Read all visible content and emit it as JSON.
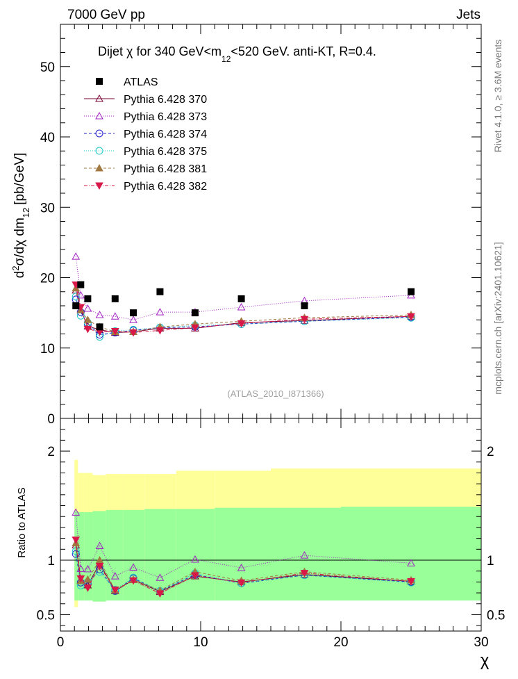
{
  "header": {
    "left": "7000 GeV pp",
    "right": "Jets"
  },
  "side_labels": {
    "rivet": "Rivet 4.1.0, ≥ 3.6M events",
    "mcplots": "mcplots.cern.ch [arXiv:2401.10621]"
  },
  "chart_data": {
    "type": "scatter",
    "title": "Dijet χ for 340 GeV<m 12<520 GeV.  anti-KT, R=0.4.",
    "title_parts": {
      "pre": "Dijet χ for 340 GeV<m",
      "sub": "12",
      "post": "<520 GeV.  anti-KT, R=0.4."
    },
    "ylabel_main": "d²σ/dχ dm12 [pb/GeV]",
    "ylabel_parts": {
      "d": "d",
      "sup": "2",
      "mid": "σ/dχ dm",
      "sub": "12",
      "unit": "[pb/GeV]"
    },
    "ylabel_ratio": "Ratio to ATLAS",
    "xlabel": "χ",
    "watermark": "(ATLAS_2010_I871366)",
    "xlim": [
      0,
      30
    ],
    "ylim_main": [
      0,
      56
    ],
    "ylim_ratio": [
      0.35,
      2.3
    ],
    "x_ticks": [
      0,
      10,
      20,
      30
    ],
    "y_ticks_main": [
      0,
      10,
      20,
      30,
      40,
      50
    ],
    "y_ticks_ratio": [
      0.5,
      1,
      2
    ],
    "x": [
      1.1,
      1.45,
      1.95,
      2.8,
      3.9,
      5.2,
      7.1,
      9.6,
      12.9,
      17.4,
      25.0
    ],
    "bin_edges": [
      1.0,
      1.25,
      1.7,
      2.3,
      3.25,
      4.5,
      6.0,
      8.25,
      11.0,
      15.0,
      20.0,
      30.0
    ],
    "data": {
      "name": "ATLAS",
      "values": [
        16,
        19,
        17,
        13,
        17,
        15,
        18,
        15,
        17,
        16,
        18
      ]
    },
    "band_inner_up": [
      1.45,
      1.44,
      1.44,
      1.45,
      1.46,
      1.46,
      1.47,
      1.47,
      1.48,
      1.48,
      1.49
    ],
    "band_inner_down": [
      0.63,
      0.63,
      0.63,
      0.62,
      0.63,
      0.63,
      0.63,
      0.63,
      0.63,
      0.63,
      0.63
    ],
    "band_outer_up": [
      1.92,
      1.8,
      1.8,
      1.78,
      1.79,
      1.79,
      1.79,
      1.82,
      1.82,
      1.84,
      1.84
    ],
    "band_outer_down": [
      0.57,
      0.65,
      0.64,
      0.63,
      0.67,
      0.68,
      0.69,
      0.67,
      0.65,
      0.64,
      0.64
    ],
    "series": [
      {
        "name": "Pythia 6.428 370",
        "color": "#7a0033",
        "marker": "triangle-open",
        "dash": "",
        "values": [
          18.2,
          15.4,
          13.1,
          12.6,
          12.2,
          12.3,
          12.8,
          12.8,
          13.6,
          13.9,
          14.5
        ]
      },
      {
        "name": "Pythia 6.428 373",
        "color": "#a020c0",
        "marker": "triangle-open",
        "dash": "1,2",
        "values": [
          23.0,
          17.5,
          15.6,
          14.7,
          14.5,
          14.0,
          15.1,
          15.1,
          15.8,
          16.7,
          17.5
        ]
      },
      {
        "name": "Pythia 6.428 374",
        "color": "#2020c8",
        "marker": "circle-open",
        "dash": "4,3",
        "values": [
          16.9,
          15.1,
          13.4,
          11.9,
          12.2,
          12.5,
          12.9,
          13.0,
          13.4,
          13.8,
          14.4
        ]
      },
      {
        "name": "Pythia 6.428 375",
        "color": "#20c8c8",
        "marker": "circle-open",
        "dash": "1,2",
        "values": [
          17.3,
          14.6,
          13.6,
          11.6,
          12.4,
          12.6,
          12.9,
          13.2,
          13.4,
          13.8,
          14.3
        ]
      },
      {
        "name": "Pythia 6.428 381",
        "color": "#a07840",
        "marker": "triangle-fill",
        "dash": "4,3",
        "values": [
          18.5,
          15.4,
          14.0,
          13.0,
          12.3,
          12.3,
          13.0,
          13.4,
          13.8,
          14.3,
          14.7
        ]
      },
      {
        "name": "Pythia 6.428 382",
        "color": "#d81848",
        "marker": "triangle-down-fill",
        "dash": "5,2,1,2",
        "values": [
          19.0,
          15.8,
          12.7,
          12.3,
          12.4,
          12.2,
          12.5,
          12.9,
          13.5,
          14.1,
          14.5
        ]
      }
    ]
  }
}
